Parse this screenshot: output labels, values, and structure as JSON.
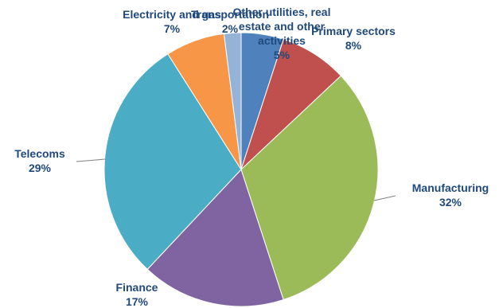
{
  "chart_data": {
    "type": "pie",
    "title": "",
    "slices": [
      {
        "name": "Other utilities, real estate and other activities",
        "value": 5,
        "pct_label": "5%",
        "color": "#4F81BD",
        "label_lines": [
          "Other utilities, real",
          "estate and other",
          "activities"
        ]
      },
      {
        "name": "Primary sectors",
        "value": 8,
        "pct_label": "8%",
        "color": "#C0504D",
        "label_lines": [
          "Primary sectors"
        ]
      },
      {
        "name": "Manufacturing",
        "value": 32,
        "pct_label": "32%",
        "color": "#9BBB59",
        "label_lines": [
          "Manufacturing"
        ]
      },
      {
        "name": "Finance",
        "value": 17,
        "pct_label": "17%",
        "color": "#8064A2",
        "label_lines": [
          "Finance"
        ]
      },
      {
        "name": "Telecoms",
        "value": 29,
        "pct_label": "29%",
        "color": "#4BACC6",
        "label_lines": [
          "Telecoms"
        ]
      },
      {
        "name": "Electricity and gas",
        "value": 7,
        "pct_label": "7%",
        "color": "#F79646",
        "label_lines": [
          "Electricity and gas"
        ]
      },
      {
        "name": "Transportation",
        "value": 2,
        "pct_label": "2%",
        "color": "#95B3D7",
        "label_lines": [
          "Transportation"
        ]
      }
    ],
    "label_color": "#1F497D",
    "legend": "none"
  }
}
